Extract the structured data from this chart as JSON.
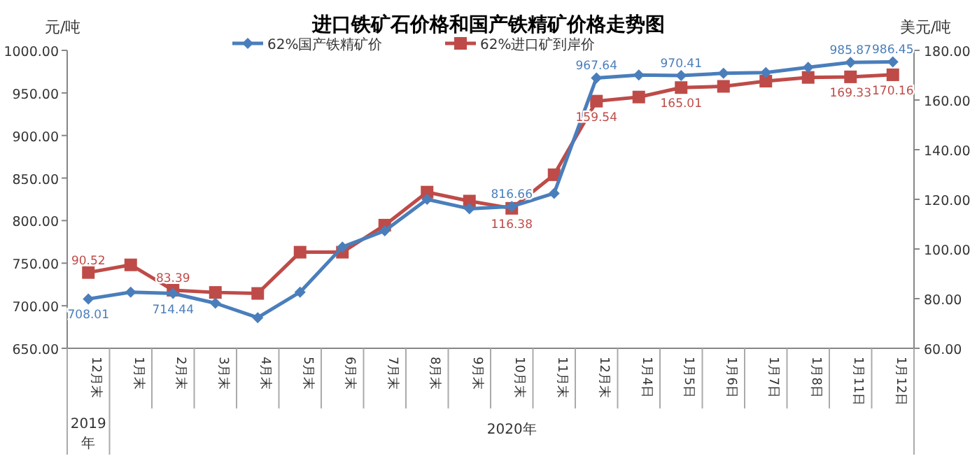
{
  "chart_data": {
    "type": "line",
    "title": "进口铁矿石价格和国产铁精矿价格走势图",
    "ylabel": "元/吨",
    "y2label": "美元/吨",
    "categories": [
      "12月末",
      "1月末",
      "2月末",
      "3月末",
      "4月末",
      "5月末",
      "6月末",
      "7月末",
      "8月末",
      "9月末",
      "10月末",
      "11月末",
      "12月末",
      "1月4日",
      "1月5日",
      "1月6日",
      "1月7日",
      "1月8日",
      "1月11日",
      "1月12日"
    ],
    "annotations": [
      "2019年",
      "2020年"
    ],
    "series": [
      {
        "name": "62%国产铁精矿价",
        "color": "#4a7ebb",
        "marker": "diamond",
        "values": [
          708.01,
          716,
          714.44,
          703,
          686,
          716,
          769,
          788,
          825,
          814,
          816.66,
          832,
          967.64,
          971,
          970.41,
          973,
          974,
          980,
          985.87,
          986.45
        ],
        "value_labels": [
          "708.01",
          null,
          "714.44",
          null,
          null,
          null,
          null,
          null,
          null,
          null,
          "816.66",
          null,
          "967.64",
          null,
          "970.41",
          null,
          null,
          null,
          "985.87",
          "986.45"
        ]
      },
      {
        "name": "62%进口矿到岸价",
        "color": "#be4b48",
        "marker": "square",
        "axis": "y2",
        "values": [
          90.52,
          93.6,
          83.39,
          82.5,
          82.1,
          98.7,
          98.7,
          109.6,
          122.9,
          119.3,
          116.38,
          129.9,
          159.54,
          161.2,
          165.01,
          165.5,
          167.6,
          169.1,
          169.33,
          170.16
        ],
        "value_labels": [
          "90.52",
          null,
          "83.39",
          null,
          null,
          null,
          null,
          null,
          null,
          null,
          "116.38",
          null,
          "159.54",
          null,
          "165.01",
          null,
          null,
          null,
          "169.33",
          "170.16"
        ]
      }
    ],
    "ylim": [
      650,
      1000
    ],
    "yticks": [
      {
        "value": 650,
        "label": "650.00"
      },
      {
        "value": 700,
        "label": "700.00"
      },
      {
        "value": 750,
        "label": "750.00"
      },
      {
        "value": 800,
        "label": "800.00"
      },
      {
        "value": 850,
        "label": "850.00"
      },
      {
        "value": 900,
        "label": "900.00"
      },
      {
        "value": 950,
        "label": "950.00"
      },
      {
        "value": 1000,
        "label": "1000.00"
      }
    ],
    "y2lim": [
      60,
      180
    ],
    "y2ticks": [
      {
        "value": 60,
        "label": "60.00"
      },
      {
        "value": 80,
        "label": "80.00"
      },
      {
        "value": 100,
        "label": "100.00"
      },
      {
        "value": 120,
        "label": "120.00"
      },
      {
        "value": 140,
        "label": "140.00"
      },
      {
        "value": 160,
        "label": "160.00"
      },
      {
        "value": 180,
        "label": "180.00"
      }
    ],
    "legend": "top"
  }
}
